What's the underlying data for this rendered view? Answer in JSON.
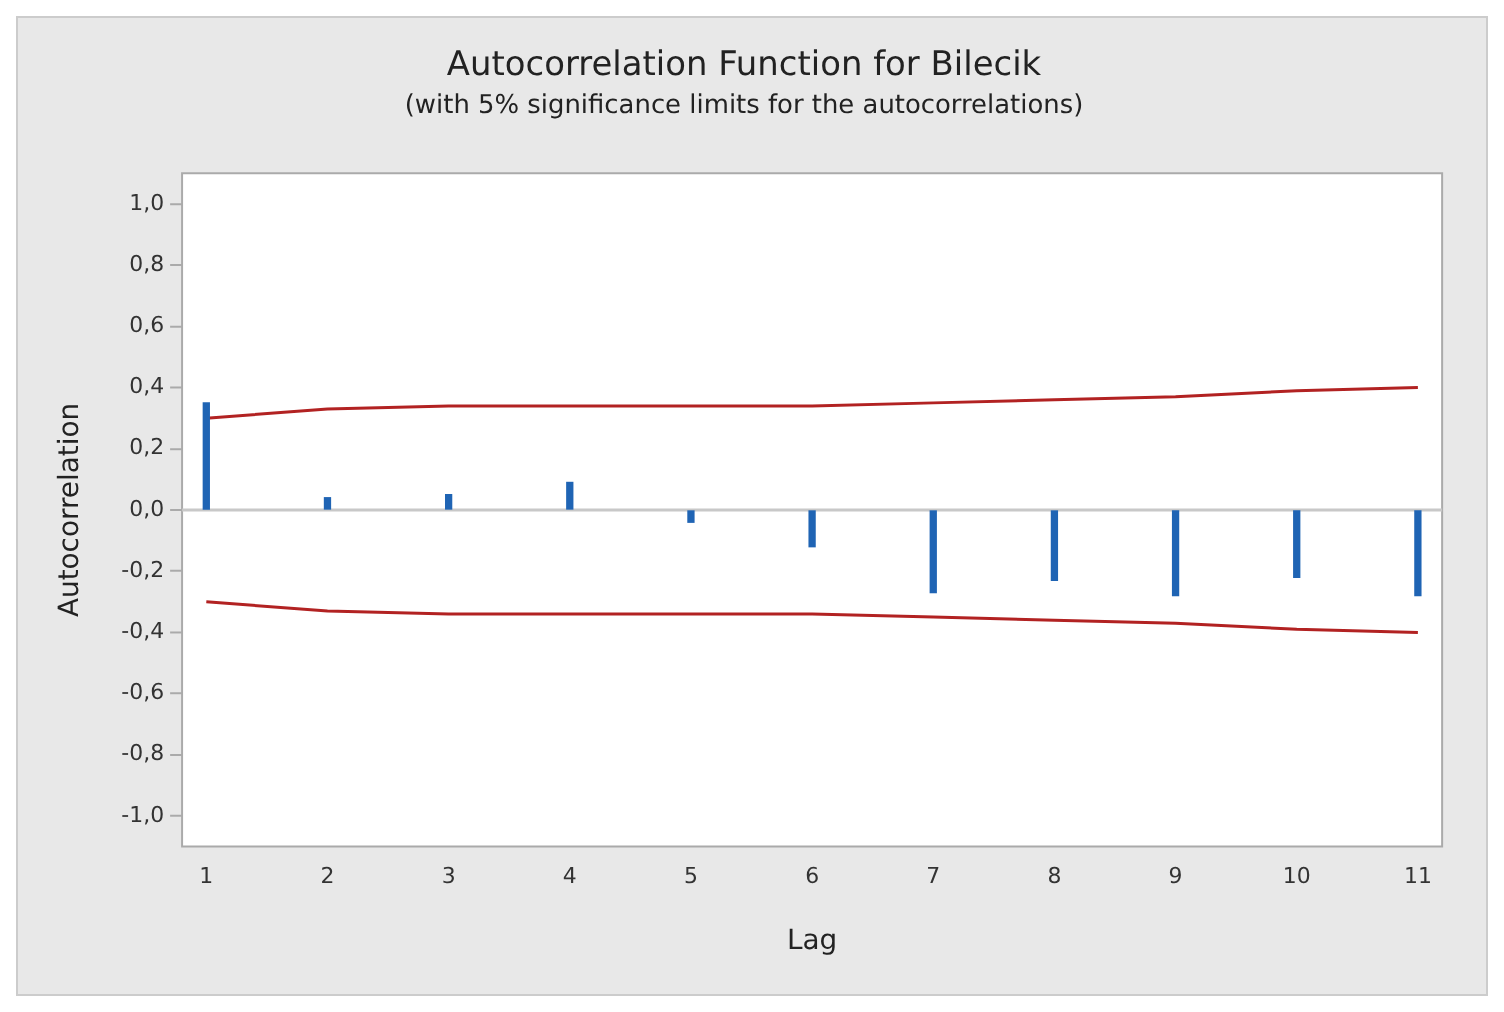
{
  "chart_data": {
    "type": "bar",
    "title": "Autocorrelation Function for Bilecik",
    "subtitle": "(with 5% significance limits for the autocorrelations)",
    "xlabel": "Lag",
    "ylabel": "Autocorrelation",
    "x": [
      1,
      2,
      3,
      4,
      5,
      6,
      7,
      8,
      9,
      10,
      11
    ],
    "xlim": [
      0.8,
      11.2
    ],
    "xticks": [
      1,
      2,
      3,
      4,
      5,
      6,
      7,
      8,
      9,
      10,
      11
    ],
    "ylim": [
      -1.1,
      1.1
    ],
    "yticks": [
      {
        "value": -1,
        "label": "-1,0"
      },
      {
        "value": -0.8,
        "label": "-0,8"
      },
      {
        "value": -0.6,
        "label": "-0,6"
      },
      {
        "value": -0.4,
        "label": "-0,4"
      },
      {
        "value": -0.2,
        "label": "-0,2"
      },
      {
        "value": 0,
        "label": "0,0"
      },
      {
        "value": 0.2,
        "label": "0,2"
      },
      {
        "value": 0.4,
        "label": "0,4"
      },
      {
        "value": 0.6,
        "label": "0,6"
      },
      {
        "value": 0.8,
        "label": "0,8"
      },
      {
        "value": 1,
        "label": "1,0"
      }
    ],
    "series": [
      {
        "color": "#1f64b4",
        "values": [
          0.35,
          0.04,
          0.05,
          0.09,
          -0.04,
          -0.12,
          -0.27,
          -0.23,
          -0.28,
          -0.22,
          -0.28
        ]
      },
      {
        "type": "line",
        "color": "#b22222",
        "values": [
          0.3,
          0.33,
          0.34,
          0.34,
          0.34,
          0.34,
          0.35,
          0.36,
          0.37,
          0.39,
          0.4
        ]
      },
      {
        "type": "line",
        "color": "#b22222",
        "values": [
          -0.3,
          -0.33,
          -0.34,
          -0.34,
          -0.34,
          -0.34,
          -0.35,
          -0.36,
          -0.37,
          -0.39,
          -0.4
        ]
      }
    ],
    "ref_lines": [
      {
        "axis": "y",
        "value": 0,
        "color": "#c8c8c8"
      }
    ],
    "grid": false,
    "legend": false,
    "marker": "none",
    "line_style": "solid"
  }
}
